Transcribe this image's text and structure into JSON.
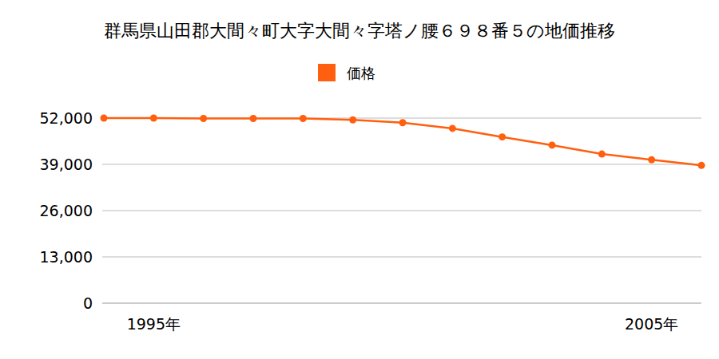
{
  "chart_data": {
    "type": "line",
    "title": "群馬県山田郡大間々町大字大間々字塔ノ腰６９８番５の地価推移",
    "categories": [
      null,
      "1995年",
      null,
      null,
      null,
      null,
      null,
      null,
      null,
      null,
      null,
      "2005年",
      null
    ],
    "series": [
      {
        "name": "価格",
        "color": "#ff5f0f",
        "marker": "circle",
        "values": [
          52000,
          52000,
          51900,
          51900,
          51900,
          51500,
          50700,
          49100,
          46700,
          44400,
          41900,
          40300,
          38700
        ]
      }
    ],
    "ylim": [
      0,
      52000
    ],
    "yticks": [
      0,
      {
        "value": 13000,
        "label": "13,000"
      },
      {
        "value": 26000,
        "label": "26,000"
      },
      {
        "value": 39000,
        "label": "39,000"
      },
      {
        "value": 52000,
        "label": "52,000"
      }
    ],
    "grid": true,
    "legend": "top"
  }
}
